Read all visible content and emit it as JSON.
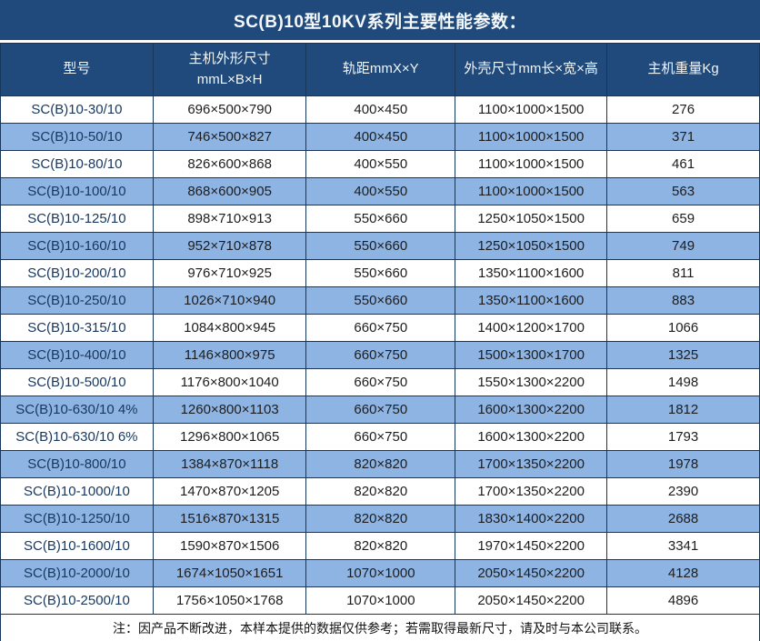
{
  "title": "SC(B)10型10KV系列主要性能参数：",
  "table": {
    "headers": [
      "型号",
      "主机外形尺寸\nmmL×B×H",
      "轨距mmX×Y",
      "外壳尺寸mm长×宽×高",
      "主机重量Kg"
    ],
    "rows": [
      [
        "SC(B)10-30/10",
        "696×500×790",
        "400×450",
        "1100×1000×1500",
        "276"
      ],
      [
        "SC(B)10-50/10",
        "746×500×827",
        "400×450",
        "1100×1000×1500",
        "371"
      ],
      [
        "SC(B)10-80/10",
        "826×600×868",
        "400×550",
        "1100×1000×1500",
        "461"
      ],
      [
        "SC(B)10-100/10",
        "868×600×905",
        "400×550",
        "1100×1000×1500",
        "563"
      ],
      [
        "SC(B)10-125/10",
        "898×710×913",
        "550×660",
        "1250×1050×1500",
        "659"
      ],
      [
        "SC(B)10-160/10",
        "952×710×878",
        "550×660",
        "1250×1050×1500",
        "749"
      ],
      [
        "SC(B)10-200/10",
        "976×710×925",
        "550×660",
        "1350×1100×1600",
        "811"
      ],
      [
        "SC(B)10-250/10",
        "1026×710×940",
        "550×660",
        "1350×1100×1600",
        "883"
      ],
      [
        "SC(B)10-315/10",
        "1084×800×945",
        "660×750",
        "1400×1200×1700",
        "1066"
      ],
      [
        "SC(B)10-400/10",
        "1146×800×975",
        "660×750",
        "1500×1300×1700",
        "1325"
      ],
      [
        "SC(B)10-500/10",
        "1176×800×1040",
        "660×750",
        "1550×1300×2200",
        "1498"
      ],
      [
        "SC(B)10-630/10 4%",
        "1260×800×1103",
        "660×750",
        "1600×1300×2200",
        "1812"
      ],
      [
        "SC(B)10-630/10 6%",
        "1296×800×1065",
        "660×750",
        "1600×1300×2200",
        "1793"
      ],
      [
        "SC(B)10-800/10",
        "1384×870×1118",
        "820×820",
        "1700×1350×2200",
        "1978"
      ],
      [
        "SC(B)10-1000/10",
        "1470×870×1205",
        "820×820",
        "1700×1350×2200",
        "2390"
      ],
      [
        "SC(B)10-1250/10",
        "1516×870×1315",
        "820×820",
        "1830×1400×2200",
        "2688"
      ],
      [
        "SC(B)10-1600/10",
        "1590×870×1506",
        "820×820",
        "1970×1450×2200",
        "3341"
      ],
      [
        "SC(B)10-2000/10",
        "1674×1050×1651",
        "1070×1000",
        "2050×1450×2200",
        "4128"
      ],
      [
        "SC(B)10-2500/10",
        "1756×1050×1768",
        "1070×1000",
        "2050×1450×2200",
        "4896"
      ]
    ]
  },
  "footer": {
    "note": "注：因产品不断改进，本样本提供的数据仅供参考；若需取得最新尺寸，请及时与本公司联系。"
  },
  "colors": {
    "header_bg": "#1F4A7B",
    "row_alt_bg": "#8DB4E2",
    "border": "#16365C",
    "header_text": "#F2F5F8",
    "model_text": "#17375E",
    "value_text": "#1D1D1F"
  }
}
